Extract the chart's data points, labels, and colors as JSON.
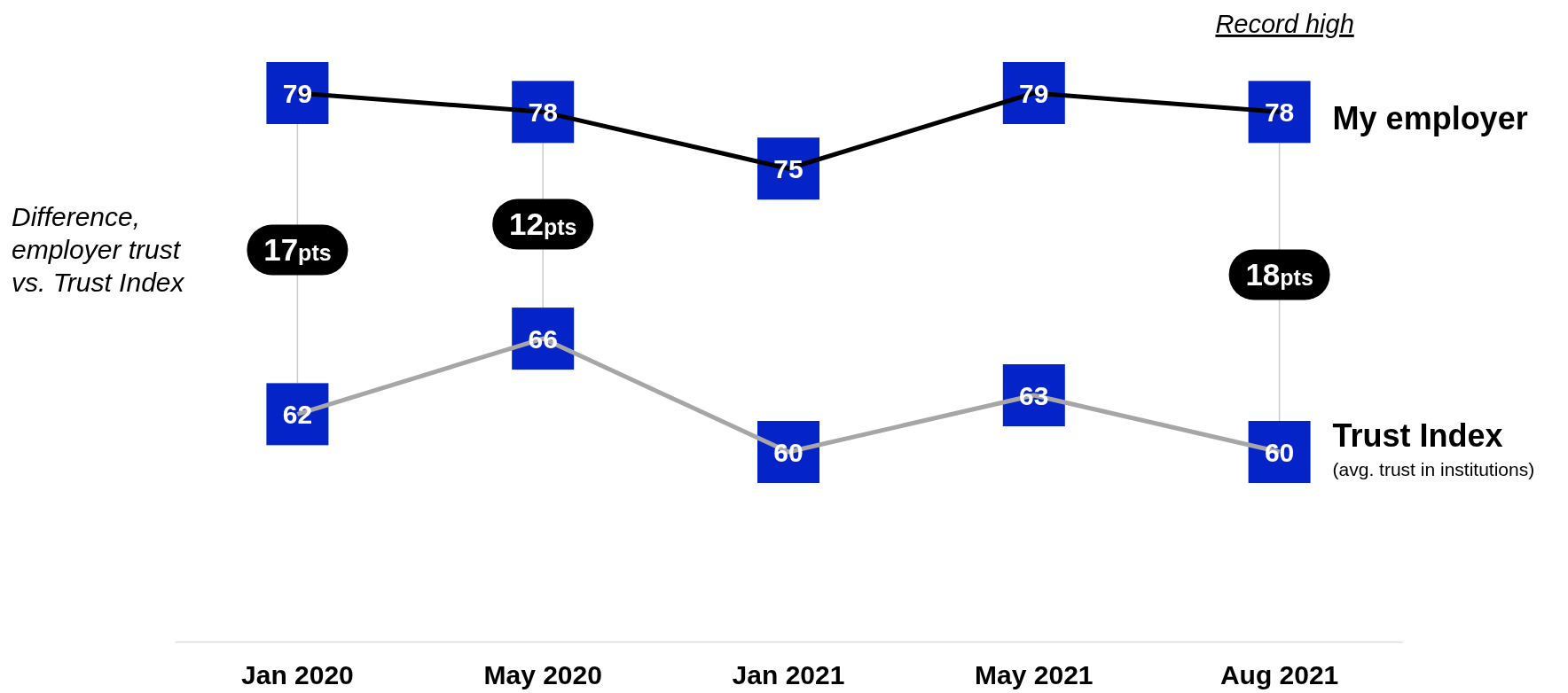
{
  "chart_data": {
    "type": "line",
    "categories": [
      "Jan 2020",
      "May 2020",
      "Jan 2021",
      "May 2021",
      "Aug 2021"
    ],
    "series": [
      {
        "name": "My employer",
        "color": "#000000",
        "colors": [
          "#0524c8",
          "#0524c8",
          "#0524c8",
          "#0524c8",
          "#0524c8"
        ],
        "values": [
          79,
          78,
          75,
          79,
          78
        ]
      },
      {
        "name": "Trust Index",
        "color": "#a6a6a6",
        "colors": [
          "#0524c8",
          "#0524c8",
          "#0524c8",
          "#0524c8",
          "#0524c8"
        ],
        "values": [
          62,
          66,
          60,
          63,
          60
        ]
      }
    ],
    "data_labels": true,
    "annotations": [
      "Difference, employer trust vs. Trust Index",
      "17pts",
      "12pts",
      "18pts",
      "Record high",
      "(avg. trust in institutions)"
    ]
  }
}
